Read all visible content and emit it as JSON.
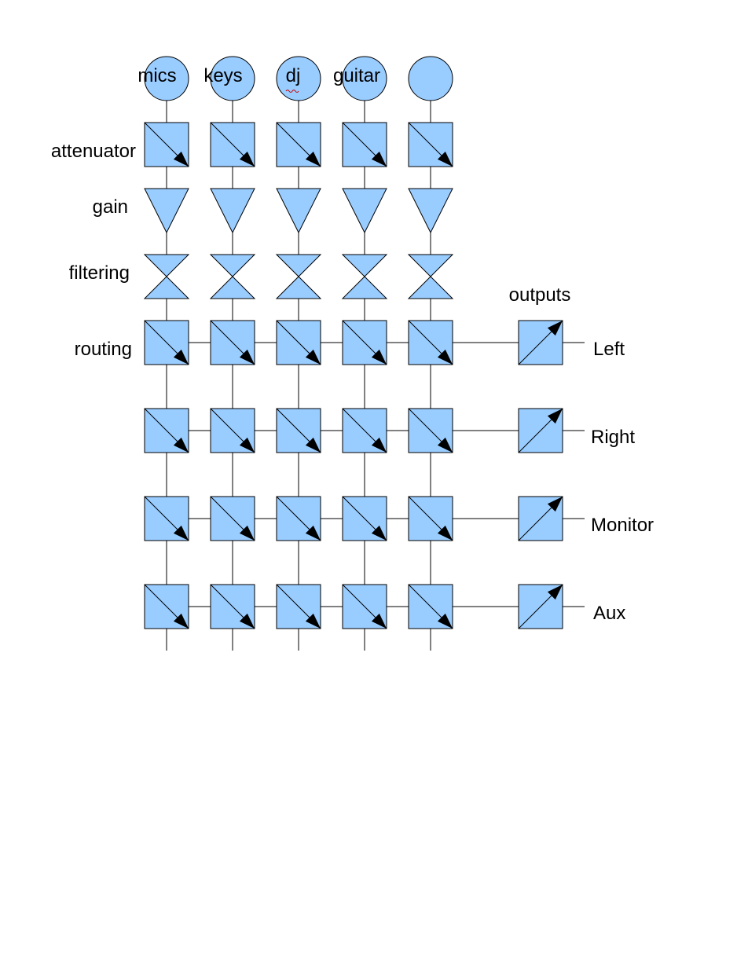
{
  "inputs": [
    "mics",
    "keys",
    "dj",
    "guitar",
    ""
  ],
  "stages": {
    "attenuator": "attenuator",
    "gain": "gain",
    "filtering": "filtering",
    "routing": "routing"
  },
  "outputs_title": "outputs",
  "outputs": [
    "Left",
    "Right",
    "Monitor",
    "Aux"
  ],
  "colors": {
    "block_fill": "#99ccff",
    "stroke": "#000000",
    "spellcheck_underline": "#cc0000"
  }
}
